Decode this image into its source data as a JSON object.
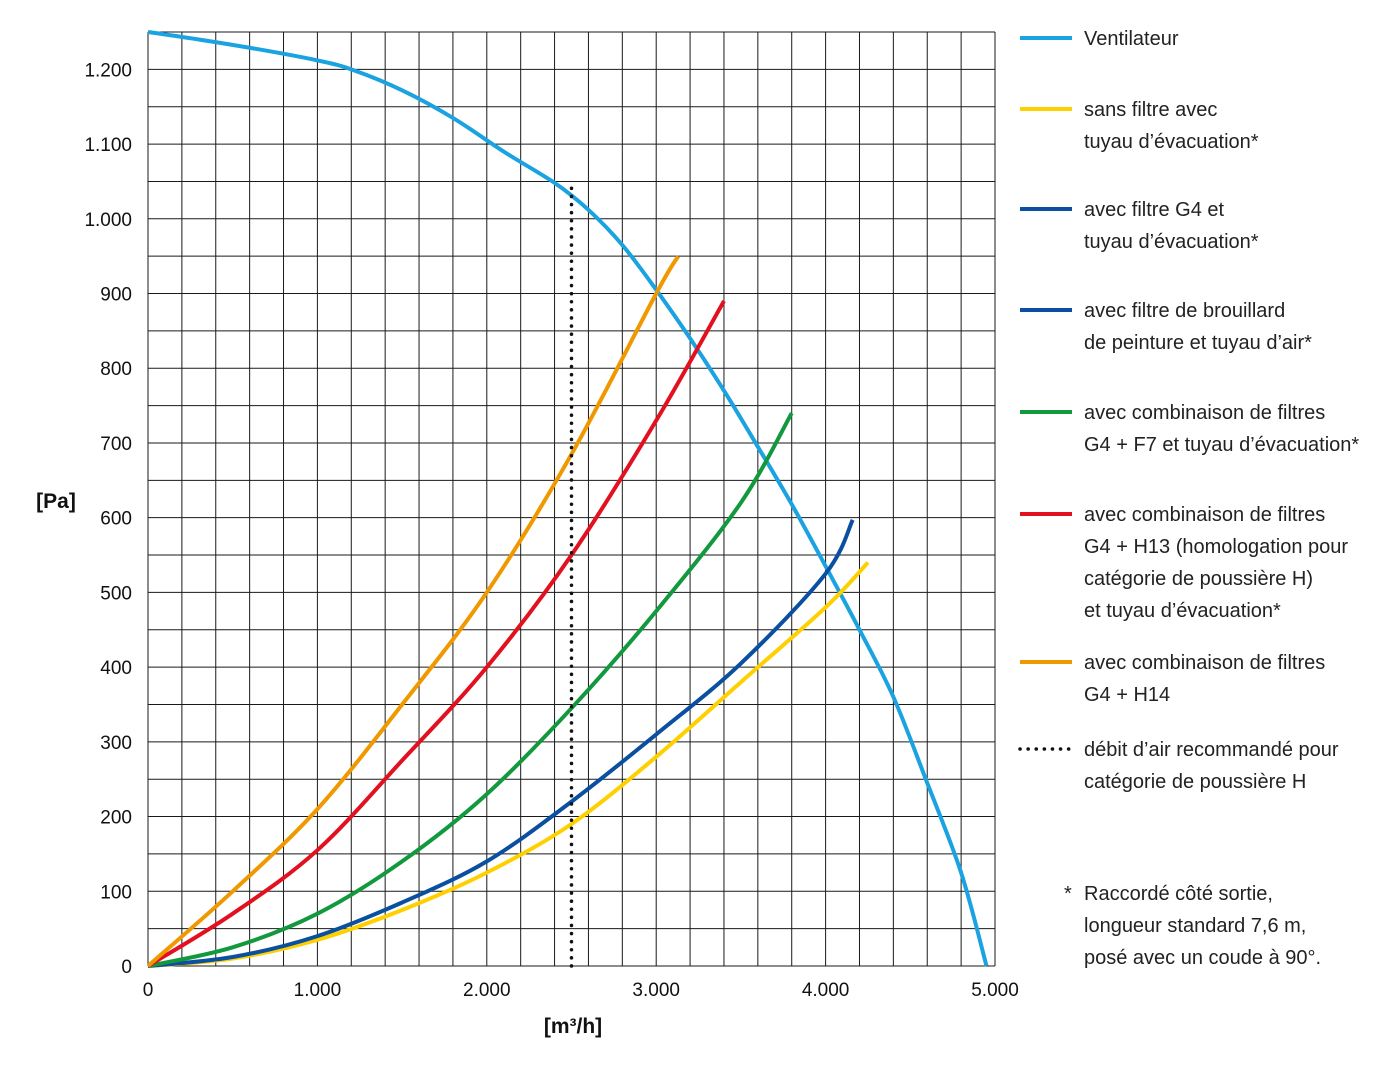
{
  "chart_data": {
    "type": "line",
    "title": "",
    "xlabel": "[m³/h]",
    "ylabel": "[Pa]",
    "xlim": [
      0,
      5000
    ],
    "ylim": [
      0,
      1250
    ],
    "x_ticks": [
      0,
      1000,
      2000,
      3000,
      4000,
      5000
    ],
    "x_tick_labels": [
      "0",
      "1.000",
      "2.000",
      "3.000",
      "4.000",
      "5.000"
    ],
    "y_ticks": [
      0,
      100,
      200,
      300,
      400,
      500,
      600,
      700,
      800,
      900,
      1000,
      1100,
      1200
    ],
    "y_tick_labels": [
      "0",
      "100",
      "200",
      "300",
      "400",
      "500",
      "600",
      "700",
      "800",
      "900",
      "1.000",
      "1.100",
      "1.200"
    ],
    "grid": true,
    "legend_position": "right",
    "series": [
      {
        "name": "Ventilateur",
        "legend_lines": [
          "Ventilateur"
        ],
        "color": "#1aa3e0",
        "dashed": false,
        "points": [
          [
            0,
            1250
          ],
          [
            300,
            1240
          ],
          [
            700,
            1225
          ],
          [
            1000,
            1212
          ],
          [
            1200,
            1200
          ],
          [
            1500,
            1172
          ],
          [
            1800,
            1135
          ],
          [
            2100,
            1090
          ],
          [
            2400,
            1048
          ],
          [
            2600,
            1012
          ],
          [
            2800,
            965
          ],
          [
            3000,
            905
          ],
          [
            3200,
            840
          ],
          [
            3400,
            770
          ],
          [
            3600,
            695
          ],
          [
            3800,
            618
          ],
          [
            4000,
            535
          ],
          [
            4200,
            450
          ],
          [
            4400,
            360
          ],
          [
            4600,
            245
          ],
          [
            4800,
            125
          ],
          [
            4950,
            0
          ]
        ]
      },
      {
        "name": "sans filtre avec tuyau d’évacuation*",
        "legend_lines": [
          "sans filtre avec",
          "tuyau d’évacuation*"
        ],
        "color": "#ffd000",
        "dashed": false,
        "points": [
          [
            0,
            0
          ],
          [
            500,
            10
          ],
          [
            1000,
            35
          ],
          [
            1500,
            75
          ],
          [
            2000,
            125
          ],
          [
            2500,
            190
          ],
          [
            3000,
            280
          ],
          [
            3500,
            380
          ],
          [
            4000,
            480
          ],
          [
            4250,
            540
          ]
        ]
      },
      {
        "name": "avec filtre G4 et tuyau d’évacuation*",
        "legend_lines": [
          "avec filtre G4 et",
          "tuyau d’évacuation*"
        ],
        "color": "#0a4fa0",
        "dashed": false,
        "points": [
          [
            0,
            0
          ],
          [
            500,
            12
          ],
          [
            1000,
            40
          ],
          [
            1500,
            85
          ],
          [
            2000,
            140
          ],
          [
            2500,
            220
          ],
          [
            3000,
            310
          ],
          [
            3500,
            405
          ],
          [
            4000,
            525
          ],
          [
            4160,
            597
          ]
        ]
      },
      {
        "name": "avec filtre de brouillard de peinture et tuyau d’air*",
        "legend_lines": [
          "avec filtre de brouillard",
          "de peinture et tuyau d’air*"
        ],
        "color": "#0a4fa0",
        "dashed": false,
        "points": []
      },
      {
        "name": "avec combinaison de filtres G4 + F7 et tuyau d’évacuation*",
        "legend_lines": [
          "avec combinaison de filtres",
          "G4 + F7 et tuyau d’évacuation*"
        ],
        "color": "#12993e",
        "dashed": false,
        "points": [
          [
            0,
            0
          ],
          [
            500,
            25
          ],
          [
            1000,
            70
          ],
          [
            1500,
            140
          ],
          [
            2000,
            230
          ],
          [
            2500,
            345
          ],
          [
            3000,
            475
          ],
          [
            3500,
            620
          ],
          [
            3800,
            740
          ]
        ]
      },
      {
        "name": "avec combinaison de filtres G4 + H13 (homologation pour catégorie de poussière H) et tuyau d’évacuation*",
        "legend_lines": [
          "avec combinaison de filtres",
          "G4 + H13 (homologation pour",
          "catégorie de poussière H)",
          "et tuyau d’évacuation*"
        ],
        "color": "#e3101f",
        "dashed": false,
        "points": [
          [
            0,
            0
          ],
          [
            500,
            70
          ],
          [
            1000,
            155
          ],
          [
            1500,
            275
          ],
          [
            2000,
            400
          ],
          [
            2500,
            550
          ],
          [
            3000,
            730
          ],
          [
            3400,
            890
          ]
        ]
      },
      {
        "name": "avec combinaison de filtres G4 + H14",
        "legend_lines": [
          "avec combinaison de filtres",
          "G4 + H14"
        ],
        "color": "#f09800",
        "dashed": false,
        "points": [
          [
            0,
            0
          ],
          [
            500,
            100
          ],
          [
            1000,
            210
          ],
          [
            1500,
            350
          ],
          [
            2000,
            500
          ],
          [
            2500,
            685
          ],
          [
            3000,
            900
          ],
          [
            3130,
            950
          ]
        ]
      },
      {
        "name": "débit d’air recommandé pour catégorie de poussière H",
        "legend_lines": [
          "débit d’air recommandé pour",
          "catégorie de poussière H"
        ],
        "color": "#111111",
        "dashed": true,
        "points": [
          [
            2500,
            0
          ],
          [
            2500,
            1050
          ]
        ]
      }
    ],
    "annotation": {
      "marker": "*",
      "lines": [
        "Raccordé côté sortie,",
        "longueur standard 7,6 m,",
        "posé avec un coude à 90°."
      ]
    }
  }
}
